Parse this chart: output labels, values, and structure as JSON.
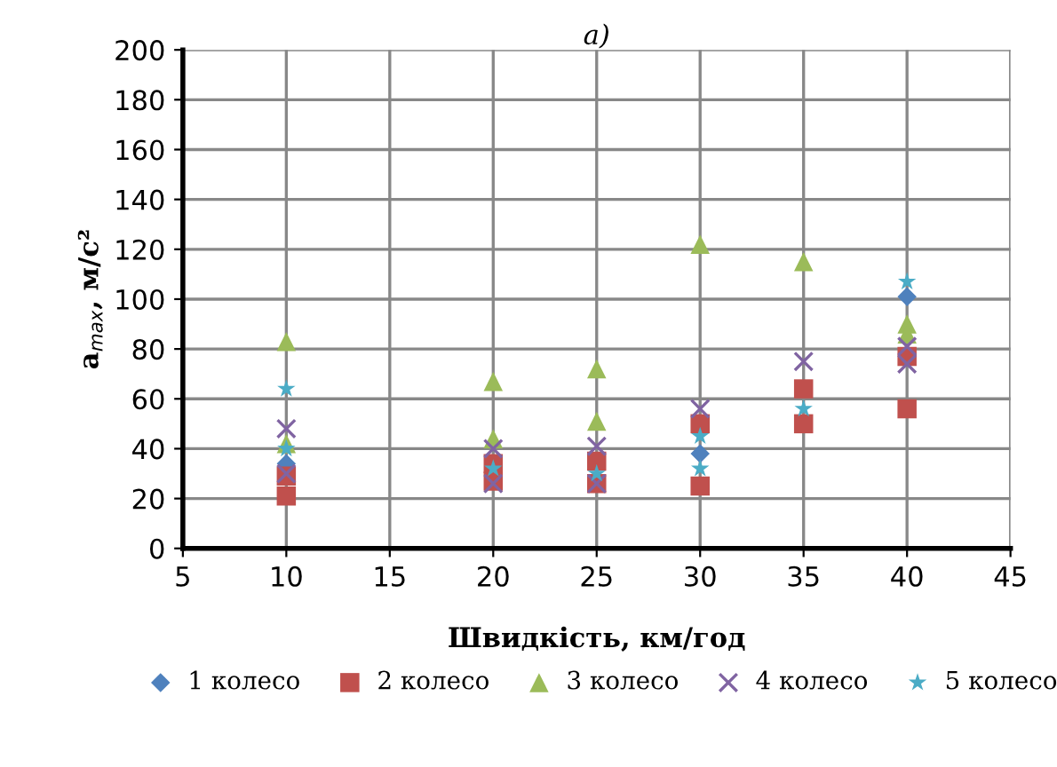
{
  "chart_data": {
    "type": "scatter",
    "title": "а)",
    "xlabel": "Швидкість, км/год",
    "ylabel": "a$_{max}$, м/с²",
    "xlim": [
      5,
      45
    ],
    "xticks": [
      5,
      10,
      15,
      20,
      25,
      30,
      35,
      40,
      45
    ],
    "ylim": [
      0,
      200
    ],
    "yticks": [
      0,
      20,
      40,
      60,
      80,
      100,
      120,
      140,
      160,
      180,
      200
    ],
    "grid": true,
    "legend": "bottom",
    "series": [
      {
        "name": "1 колесо",
        "color": "#4f81bd",
        "marker": "diamond",
        "x": [
          10,
          30,
          40
        ],
        "values": [
          34,
          38,
          101
        ]
      },
      {
        "name": "2 колесо",
        "color": "#c0504d",
        "marker": "square",
        "x": [
          10,
          10,
          20,
          20,
          25,
          25,
          30,
          30,
          35,
          35,
          40,
          40
        ],
        "values": [
          29,
          21,
          34,
          27,
          35,
          26,
          50,
          25,
          64,
          50,
          77,
          56
        ]
      },
      {
        "name": "3 колесо",
        "color": "#9bbb59",
        "marker": "triangle",
        "x": [
          10,
          10,
          20,
          20,
          25,
          25,
          30,
          35,
          40,
          40
        ],
        "values": [
          83,
          42,
          67,
          44,
          72,
          51,
          122,
          115,
          90,
          86
        ]
      },
      {
        "name": "4 колесо",
        "color": "#8064a2",
        "marker": "cross",
        "x": [
          10,
          10,
          20,
          20,
          25,
          25,
          30,
          35,
          40,
          40
        ],
        "values": [
          48,
          30,
          40,
          26,
          41,
          26,
          56,
          75,
          81,
          74
        ]
      },
      {
        "name": "5 колесо",
        "color": "#4bacc6",
        "marker": "star",
        "x": [
          10,
          10,
          20,
          25,
          30,
          30,
          35,
          40
        ],
        "values": [
          64,
          40,
          32,
          30,
          45,
          32,
          56,
          107
        ]
      }
    ]
  }
}
